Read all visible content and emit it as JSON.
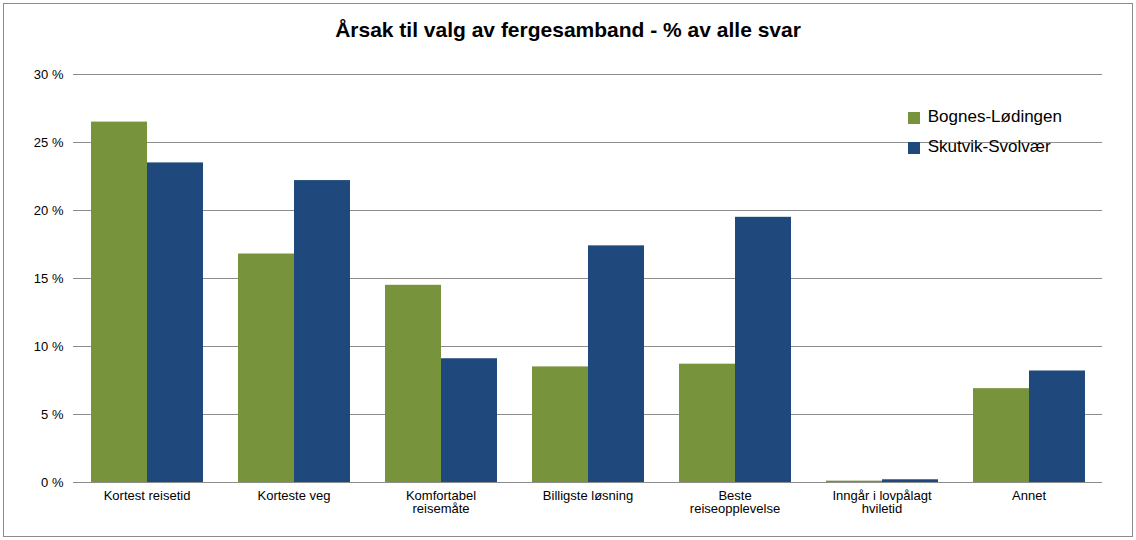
{
  "chart_data": {
    "type": "bar",
    "title": "Årsak til valg av fergesamband  -  % av alle svar",
    "categories": [
      "Kortest reisetid",
      "Korteste veg",
      "Komfortabel\nreisemåte",
      "Billigste løsning",
      "Beste\nreiseopplevelse",
      "Inngår i lovpålagt\nhviletid",
      "Annet"
    ],
    "series": [
      {
        "name": "Bognes-Lødingen",
        "color": "#77933c",
        "values": [
          26.5,
          16.8,
          14.5,
          8.5,
          8.7,
          0.1,
          6.9
        ]
      },
      {
        "name": "Skutvik-Svolvær",
        "color": "#1f497d",
        "values": [
          23.5,
          22.2,
          9.1,
          17.4,
          19.5,
          0.2,
          8.2
        ]
      }
    ],
    "ylim": [
      0,
      30
    ],
    "yticks": [
      {
        "value": 0,
        "label": "0 %"
      },
      {
        "value": 5,
        "label": "5 %"
      },
      {
        "value": 10,
        "label": "10 %"
      },
      {
        "value": 15,
        "label": "15 %"
      },
      {
        "value": 20,
        "label": "20 %"
      },
      {
        "value": 25,
        "label": "25 %"
      },
      {
        "value": 30,
        "label": "30 %"
      }
    ],
    "grid": true,
    "legend": "top-right"
  }
}
